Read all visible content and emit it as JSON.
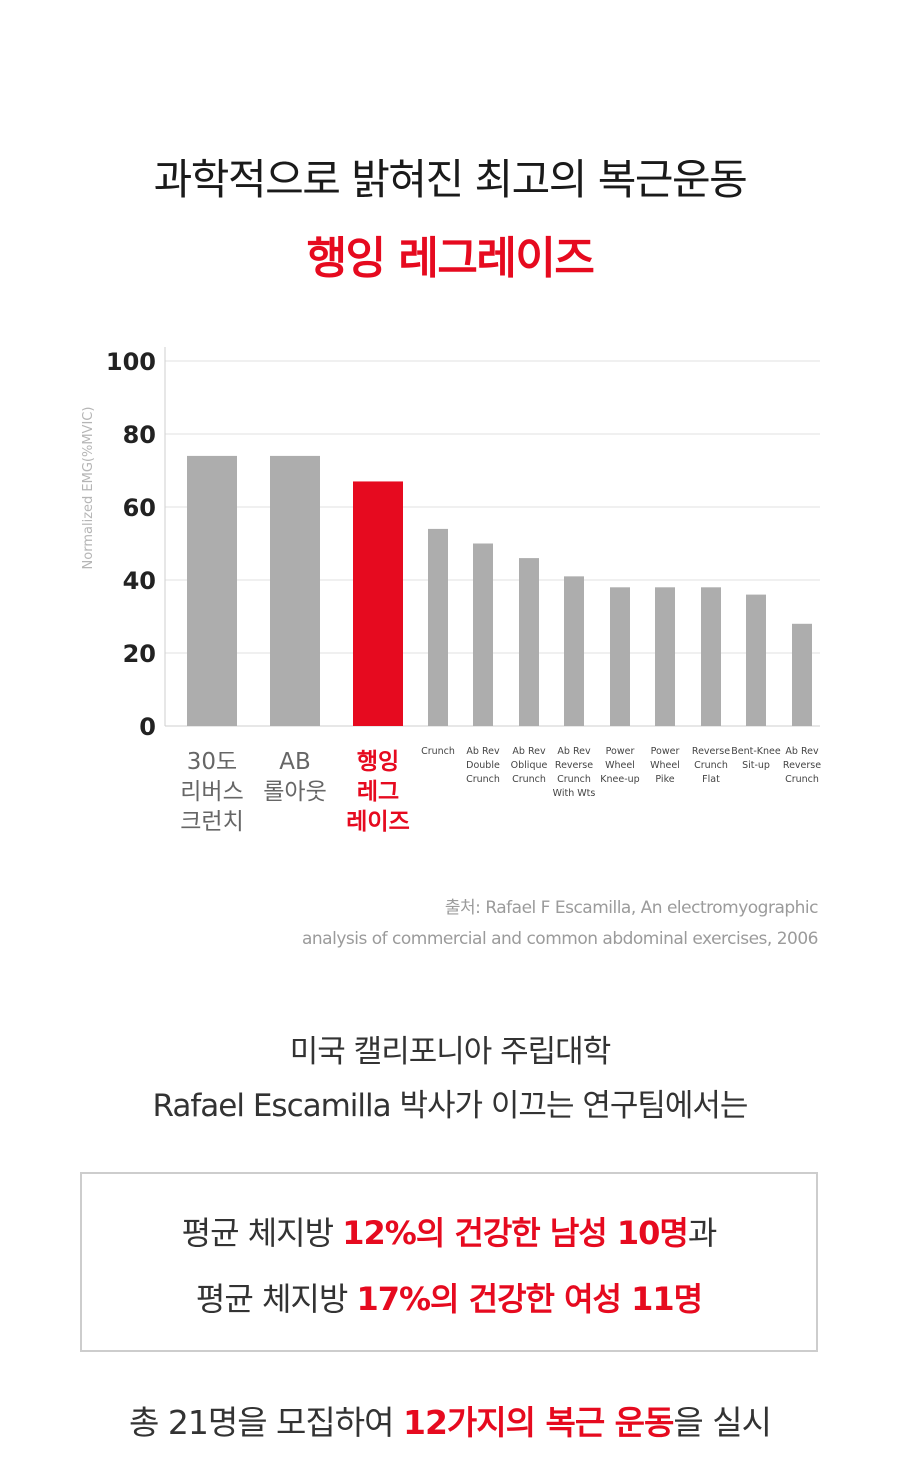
{
  "heading": {
    "line1": "과학적으로 밝혀진 최고의 복근운동",
    "line2": "행잉 레그레이즈"
  },
  "colors": {
    "accent": "#e60a1f",
    "bar": "#adadad"
  },
  "chart_data": {
    "type": "bar",
    "ylabel": "Normalized EMG(%MVIC)",
    "ylim": [
      0,
      100
    ],
    "yticks": [
      0,
      20,
      40,
      60,
      80,
      100
    ],
    "grid": true,
    "categories": [
      [
        "30도",
        "리버스",
        "크런치"
      ],
      [
        "AB",
        "롤아웃"
      ],
      [
        "행잉",
        "레그",
        "레이즈"
      ],
      [
        "Crunch"
      ],
      [
        "Ab Rev",
        "Double",
        "Crunch"
      ],
      [
        "Ab Rev",
        "Oblique",
        "Crunch"
      ],
      [
        "Ab Rev",
        "Reverse",
        "Crunch",
        "With Wts"
      ],
      [
        "Power",
        "Wheel",
        "Knee-up"
      ],
      [
        "Power",
        "Wheel",
        "Pike"
      ],
      [
        "Reverse",
        "Crunch",
        "Flat"
      ],
      [
        "Bent-Knee",
        "Sit-up"
      ],
      [
        "Ab Rev",
        "Reverse",
        "Crunch"
      ]
    ],
    "values": [
      74,
      74,
      67,
      54,
      50,
      46,
      41,
      38,
      38,
      38,
      36,
      28
    ],
    "highlight_index": 2
  },
  "source": {
    "line1": "출처: Rafael F Escamilla, An electromyographic",
    "line2": "analysis of commercial and common abdominal exercises, 2006"
  },
  "intro": {
    "line1": "미국 캘리포니아 주립대학",
    "line2": "Rafael Escamilla 박사가 이끄는 연구팀에서는"
  },
  "box": {
    "line1_pre": "평균 체지방 ",
    "line1_hl": "12%의 건강한 남성 10명",
    "line1_post": "과",
    "line2_pre": "평균 체지방 ",
    "line2_hl": "17%의 건강한 여성 11명"
  },
  "bottom": {
    "pre": "총 21명을 모집하여 ",
    "hl": "12가지의 복근 운동",
    "post": "을 실시"
  }
}
